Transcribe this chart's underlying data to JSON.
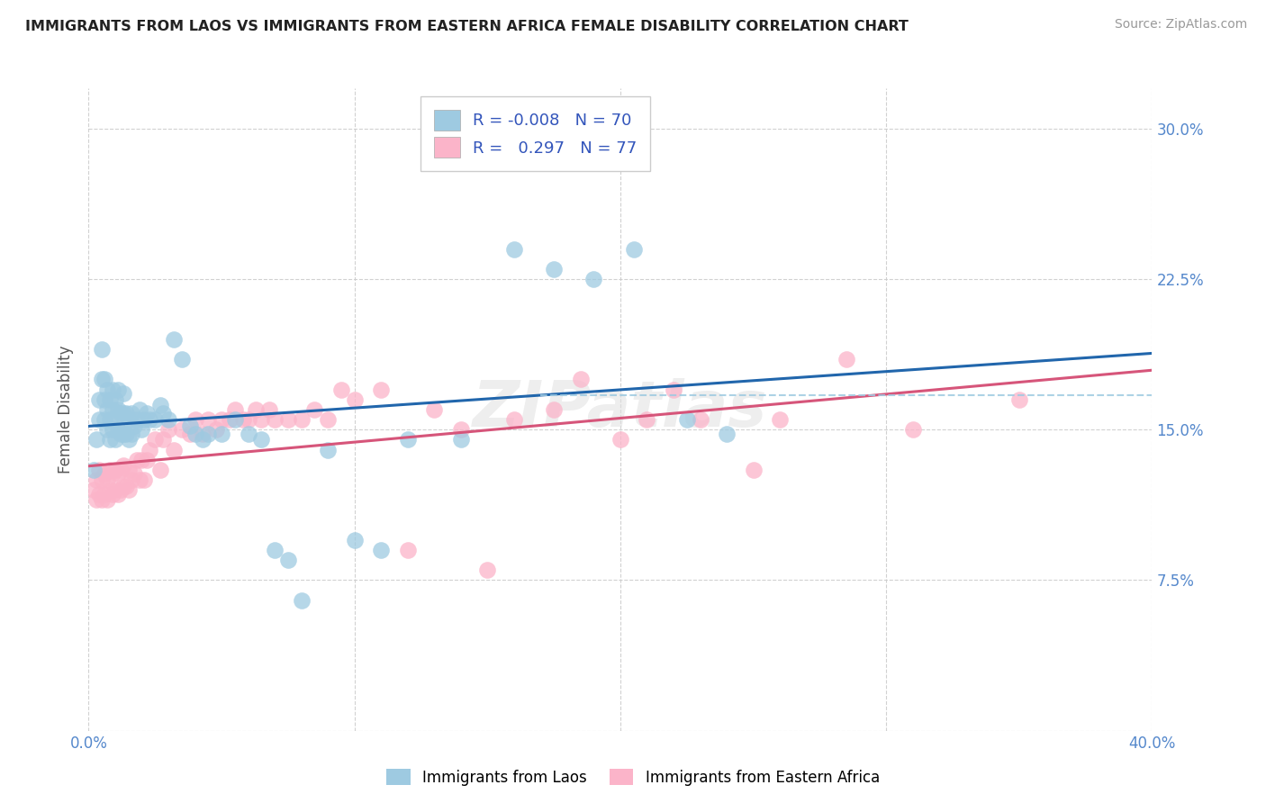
{
  "title": "IMMIGRANTS FROM LAOS VS IMMIGRANTS FROM EASTERN AFRICA FEMALE DISABILITY CORRELATION CHART",
  "source": "Source: ZipAtlas.com",
  "xlabel_laos": "Immigrants from Laos",
  "xlabel_ea": "Immigrants from Eastern Africa",
  "ylabel": "Female Disability",
  "xlim": [
    0.0,
    0.4
  ],
  "ylim": [
    0.0,
    0.32
  ],
  "r_laos": -0.008,
  "n_laos": 70,
  "r_ea": 0.297,
  "n_ea": 77,
  "color_laos": "#9ecae1",
  "color_ea": "#fbb4c9",
  "color_laos_line": "#2166ac",
  "color_ea_line": "#d6557a",
  "watermark": "ZIPatlas",
  "laos_x": [
    0.002,
    0.003,
    0.004,
    0.004,
    0.005,
    0.005,
    0.006,
    0.006,
    0.006,
    0.007,
    0.007,
    0.007,
    0.008,
    0.008,
    0.008,
    0.009,
    0.009,
    0.009,
    0.01,
    0.01,
    0.01,
    0.011,
    0.011,
    0.011,
    0.012,
    0.012,
    0.013,
    0.013,
    0.013,
    0.014,
    0.014,
    0.015,
    0.015,
    0.016,
    0.016,
    0.017,
    0.018,
    0.019,
    0.02,
    0.021,
    0.022,
    0.023,
    0.025,
    0.027,
    0.028,
    0.03,
    0.032,
    0.035,
    0.038,
    0.04,
    0.043,
    0.045,
    0.05,
    0.055,
    0.06,
    0.065,
    0.07,
    0.075,
    0.08,
    0.09,
    0.1,
    0.11,
    0.12,
    0.14,
    0.16,
    0.175,
    0.19,
    0.205,
    0.225,
    0.24
  ],
  "laos_y": [
    0.13,
    0.145,
    0.155,
    0.165,
    0.175,
    0.19,
    0.155,
    0.165,
    0.175,
    0.15,
    0.16,
    0.17,
    0.145,
    0.155,
    0.165,
    0.15,
    0.16,
    0.17,
    0.145,
    0.155,
    0.165,
    0.15,
    0.16,
    0.17,
    0.148,
    0.158,
    0.148,
    0.158,
    0.168,
    0.148,
    0.158,
    0.145,
    0.155,
    0.148,
    0.158,
    0.152,
    0.155,
    0.16,
    0.15,
    0.155,
    0.158,
    0.155,
    0.155,
    0.162,
    0.158,
    0.155,
    0.195,
    0.185,
    0.152,
    0.148,
    0.145,
    0.148,
    0.148,
    0.155,
    0.148,
    0.145,
    0.09,
    0.085,
    0.065,
    0.14,
    0.095,
    0.09,
    0.145,
    0.145,
    0.24,
    0.23,
    0.225,
    0.24,
    0.155,
    0.148
  ],
  "ea_x": [
    0.002,
    0.003,
    0.003,
    0.004,
    0.004,
    0.005,
    0.005,
    0.006,
    0.006,
    0.007,
    0.007,
    0.008,
    0.008,
    0.009,
    0.009,
    0.01,
    0.01,
    0.011,
    0.011,
    0.012,
    0.012,
    0.013,
    0.013,
    0.014,
    0.015,
    0.015,
    0.016,
    0.017,
    0.018,
    0.019,
    0.02,
    0.021,
    0.022,
    0.023,
    0.025,
    0.027,
    0.028,
    0.03,
    0.032,
    0.035,
    0.038,
    0.04,
    0.043,
    0.045,
    0.048,
    0.05,
    0.053,
    0.055,
    0.058,
    0.06,
    0.063,
    0.065,
    0.068,
    0.07,
    0.075,
    0.08,
    0.085,
    0.09,
    0.095,
    0.1,
    0.11,
    0.12,
    0.13,
    0.14,
    0.15,
    0.16,
    0.175,
    0.185,
    0.2,
    0.21,
    0.22,
    0.23,
    0.25,
    0.26,
    0.285,
    0.31,
    0.35
  ],
  "ea_y": [
    0.12,
    0.115,
    0.125,
    0.118,
    0.13,
    0.115,
    0.125,
    0.118,
    0.128,
    0.115,
    0.125,
    0.12,
    0.13,
    0.118,
    0.128,
    0.12,
    0.13,
    0.118,
    0.128,
    0.12,
    0.13,
    0.122,
    0.132,
    0.122,
    0.12,
    0.13,
    0.125,
    0.128,
    0.135,
    0.125,
    0.135,
    0.125,
    0.135,
    0.14,
    0.145,
    0.13,
    0.145,
    0.15,
    0.14,
    0.15,
    0.148,
    0.155,
    0.148,
    0.155,
    0.15,
    0.155,
    0.155,
    0.16,
    0.155,
    0.155,
    0.16,
    0.155,
    0.16,
    0.155,
    0.155,
    0.155,
    0.16,
    0.155,
    0.17,
    0.165,
    0.17,
    0.09,
    0.16,
    0.15,
    0.08,
    0.155,
    0.16,
    0.175,
    0.145,
    0.155,
    0.17,
    0.155,
    0.13,
    0.155,
    0.185,
    0.15,
    0.165
  ]
}
